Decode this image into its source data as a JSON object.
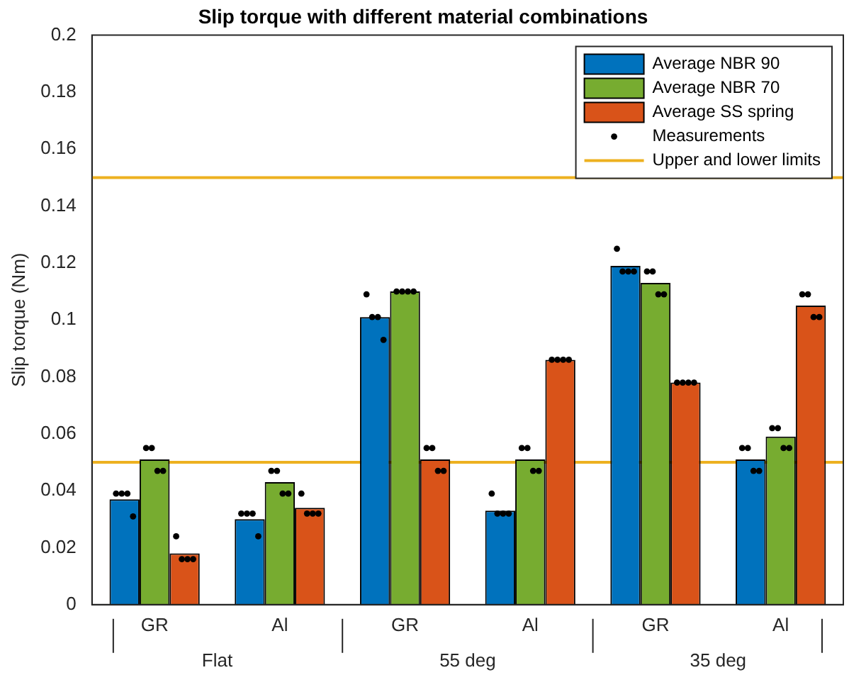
{
  "chart_data": {
    "type": "bar",
    "title": "Slip torque with different material combinations",
    "ylabel": "Slip torque (Nm)",
    "categories": [
      "GR",
      "Al",
      "GR",
      "Al",
      "GR",
      "Al"
    ],
    "annotations": [
      "Flat",
      "55 deg",
      "35 deg"
    ],
    "series": [
      {
        "name": "Average NBR 90",
        "color": "#0072bd",
        "values": [
          0.037,
          0.03,
          0.101,
          0.033,
          0.119,
          0.051
        ]
      },
      {
        "name": "Average NBR 70",
        "color": "#77ac30",
        "values": [
          0.051,
          0.043,
          0.11,
          0.051,
          0.113,
          0.059
        ]
      },
      {
        "name": "Average SS spring",
        "color": "#d95319",
        "values": [
          0.018,
          0.034,
          0.051,
          0.086,
          0.078,
          0.105
        ]
      },
      {
        "name": "Measurements",
        "type": "scatter",
        "color": "#000000",
        "values": [
          0.039,
          0.032,
          0.109,
          0.039,
          0.125,
          0.055
        ]
      },
      {
        "type": "scatter",
        "color": "#000000",
        "values": [
          0.055,
          0.047,
          0.11,
          0.055,
          0.117,
          0.062
        ]
      },
      {
        "type": "scatter",
        "color": "#000000",
        "values": [
          0.024,
          0.039,
          0.055,
          0.086,
          0.078,
          0.109
        ]
      },
      {
        "type": "scatter",
        "color": "#000000",
        "values": [
          0.039,
          0.032,
          0.101,
          0.032,
          0.117,
          0.055
        ]
      },
      {
        "type": "scatter",
        "color": "#000000",
        "values": [
          0.055,
          0.047,
          0.11,
          0.055,
          0.117,
          0.062
        ]
      },
      {
        "type": "scatter",
        "color": "#000000",
        "values": [
          0.016,
          0.032,
          0.055,
          0.086,
          0.078,
          0.109
        ]
      },
      {
        "type": "scatter",
        "color": "#000000",
        "values": [
          0.039,
          0.032,
          0.101,
          0.032,
          0.117,
          0.047
        ]
      },
      {
        "type": "scatter",
        "color": "#000000",
        "values": [
          0.047,
          0.039,
          0.11,
          0.047,
          0.109,
          0.055
        ]
      },
      {
        "type": "scatter",
        "color": "#000000",
        "values": [
          0.016,
          0.032,
          0.047,
          0.086,
          0.078,
          0.101
        ]
      },
      {
        "type": "scatter",
        "color": "#000000",
        "values": [
          0.031,
          0.024,
          0.093,
          0.032,
          0.117,
          0.047
        ]
      },
      {
        "type": "scatter",
        "color": "#000000",
        "values": [
          0.047,
          0.039,
          0.11,
          0.047,
          0.109,
          0.055
        ]
      },
      {
        "type": "scatter",
        "color": "#000000",
        "values": [
          0.016,
          0.032,
          0.047,
          0.086,
          0.078,
          0.101
        ]
      }
    ],
    "ref_lines": [
      {
        "axis": "y",
        "value": 0.15,
        "label": "Upper and lower limits",
        "color": "#edb120"
      },
      {
        "axis": "y",
        "value": 0.05,
        "color": "#edb120"
      }
    ],
    "ylim": [
      0,
      0.2
    ],
    "yticks": [
      0,
      0.02,
      0.04,
      0.06,
      0.08,
      0.1,
      0.12,
      0.14,
      0.16,
      0.18,
      0.2
    ],
    "marker": "circle",
    "grid": false,
    "legend": "top right"
  }
}
